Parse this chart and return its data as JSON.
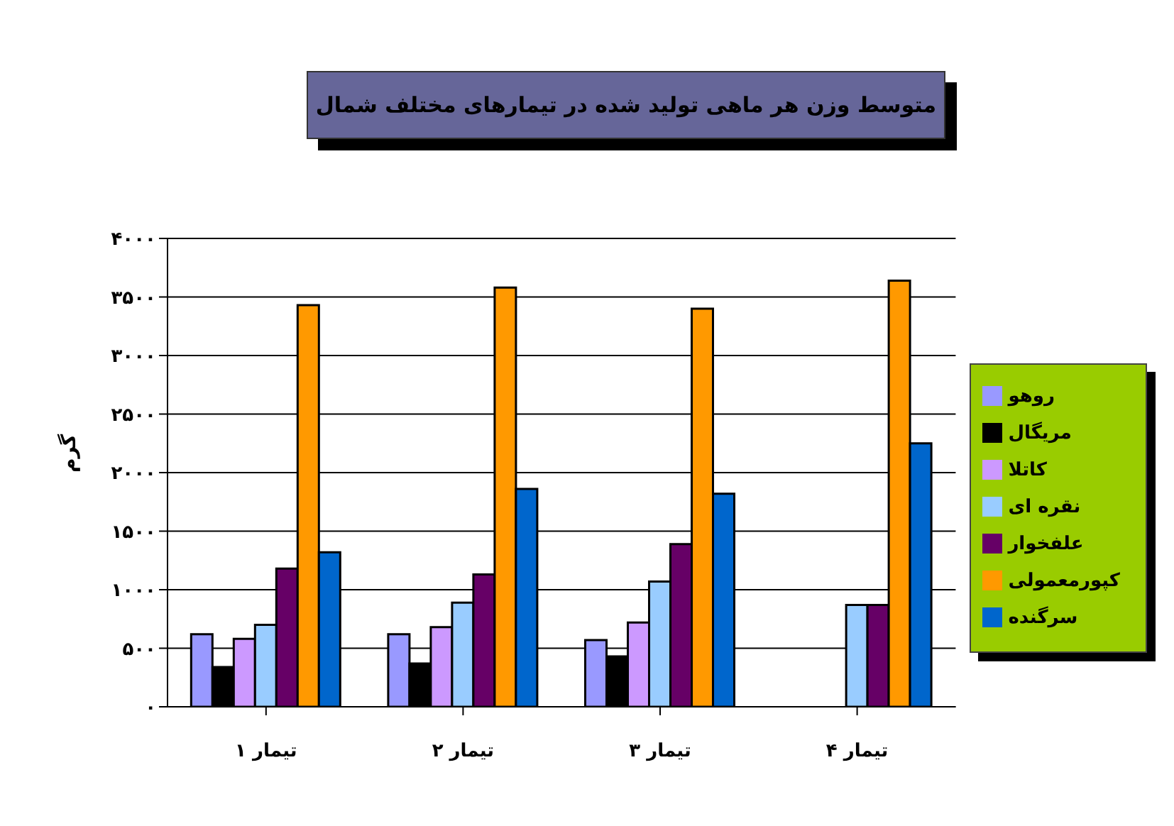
{
  "chart_data": {
    "type": "bar",
    "title": "متوسط وزن هر ماهی تولید شده در تیمارهای مختلف شمال",
    "ylabel": "گرم",
    "categories": [
      "تیمار ۱",
      "تیمار ۲",
      "تیمار ۳",
      "تیمار ۴"
    ],
    "series": [
      {
        "name": "روهو",
        "color": "#9999ff",
        "values": [
          620,
          620,
          570,
          null
        ]
      },
      {
        "name": "مریگال",
        "color": "#000000",
        "values": [
          340,
          370,
          430,
          null
        ]
      },
      {
        "name": "کاتلا",
        "color": "#cc99ff",
        "values": [
          580,
          680,
          720,
          null
        ]
      },
      {
        "name": "نقره ای",
        "color": "#99ccff",
        "values": [
          700,
          890,
          1070,
          870
        ]
      },
      {
        "name": "علفخوار",
        "color": "#660066",
        "values": [
          1180,
          1130,
          1390,
          870
        ]
      },
      {
        "name": "کپورمعمولی",
        "color": "#ff9900",
        "values": [
          3430,
          3580,
          3400,
          3640
        ]
      },
      {
        "name": "سرگنده",
        "color": "#0066cc",
        "values": [
          1320,
          1860,
          1820,
          2250
        ]
      }
    ],
    "ylim": [
      0,
      4000
    ],
    "yticks": [
      {
        "value": 0,
        "label": "۰"
      },
      {
        "value": 500,
        "label": "۵۰۰"
      },
      {
        "value": 1000,
        "label": "۱۰۰۰"
      },
      {
        "value": 1500,
        "label": "۱۵۰۰"
      },
      {
        "value": 2000,
        "label": "۲۰۰۰"
      },
      {
        "value": 2500,
        "label": "۲۵۰۰"
      },
      {
        "value": 3000,
        "label": "۳۰۰۰"
      },
      {
        "value": 3500,
        "label": "۳۵۰۰"
      },
      {
        "value": 4000,
        "label": "۴۰۰۰"
      }
    ],
    "grid": "y",
    "legend": "right"
  }
}
